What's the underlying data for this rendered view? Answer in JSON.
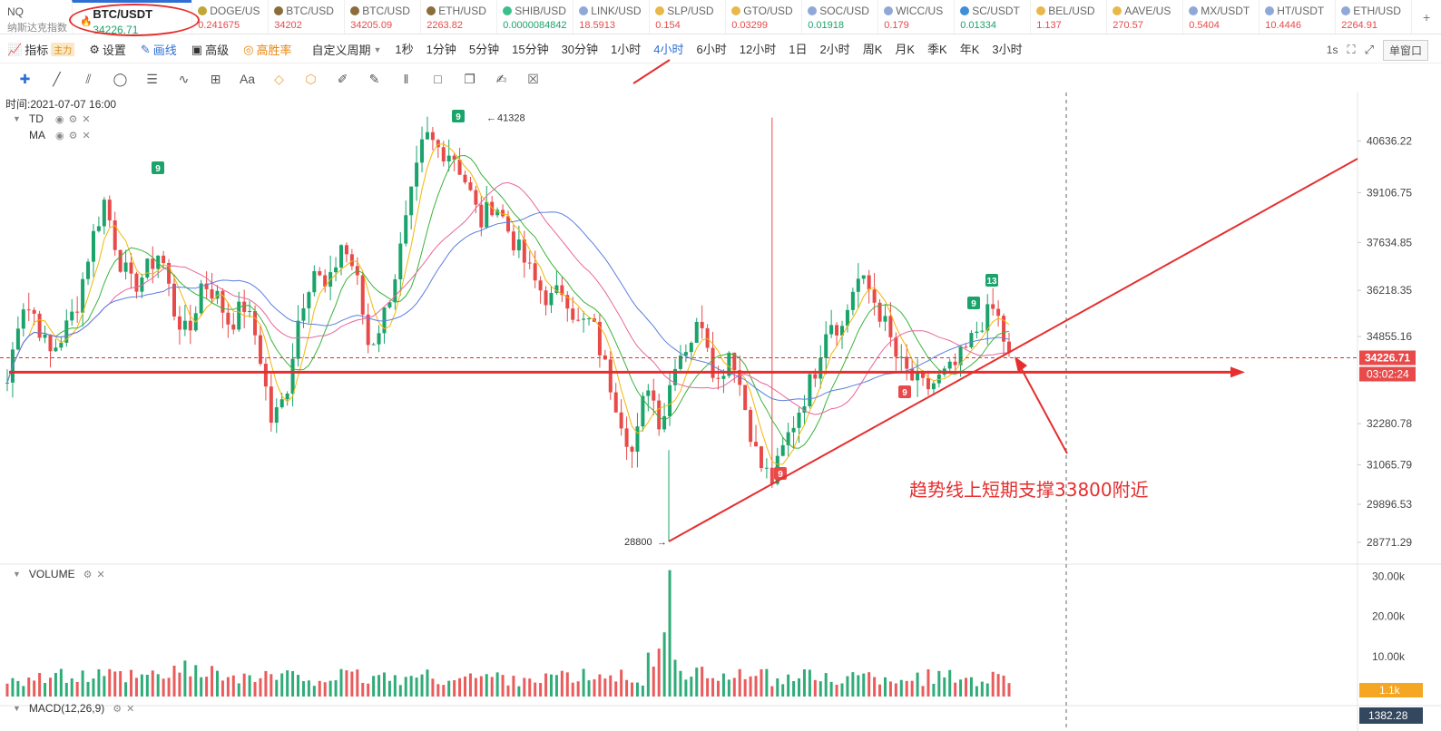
{
  "ticker": {
    "nq": {
      "symbol": "NQ",
      "subtitle": "纳斯达克指数"
    },
    "active": {
      "symbol": "BTC/USDT",
      "price": "34226.71"
    },
    "items": [
      {
        "symbol": "DOGE/US",
        "price": "0.241675",
        "coin_color": "#c2a633"
      },
      {
        "symbol": "BTC/USD",
        "price": "34202",
        "coin_color": "#8a6d3b"
      },
      {
        "symbol": "BTC/USD",
        "price": "34205.09",
        "coin_color": "#8a6d3b"
      },
      {
        "symbol": "ETH/USD",
        "price": "2263.82",
        "coin_color": "#8a6d3b"
      },
      {
        "symbol": "SHIB/USD",
        "price": "0.0000084842",
        "coin_color": "#3cbf8c"
      },
      {
        "symbol": "LINK/USD",
        "price": "18.5913",
        "coin_color": "#8fa8d8"
      },
      {
        "symbol": "SLP/USD",
        "price": "0.154",
        "coin_color": "#e8b84a"
      },
      {
        "symbol": "GTO/USD",
        "price": "0.03299",
        "coin_color": "#e8b84a"
      },
      {
        "symbol": "SOC/USD",
        "price": "0.01918",
        "coin_color": "#8fa8d8"
      },
      {
        "symbol": "WICC/US",
        "price": "0.179",
        "coin_color": "#8fa8d8"
      },
      {
        "symbol": "SC/USDT",
        "price": "0.01334",
        "coin_color": "#3c8fd8"
      },
      {
        "symbol": "BEL/USD",
        "price": "1.137",
        "coin_color": "#e8b84a"
      },
      {
        "symbol": "AAVE/US",
        "price": "270.57",
        "coin_color": "#e8b84a"
      },
      {
        "symbol": "MX/USDT",
        "price": "0.5404",
        "coin_color": "#8fa8d8"
      },
      {
        "symbol": "HT/USDT",
        "price": "10.4446",
        "coin_color": "#8fa8d8"
      },
      {
        "symbol": "ETH/USD",
        "price": "2264.91",
        "coin_color": "#8fa8d8"
      }
    ],
    "add_label": "+"
  },
  "toolbar": {
    "indicators_label": "指标",
    "indicators_tag": "主力",
    "settings_label": "设置",
    "draw_label": "画线",
    "advanced_label": "高级",
    "winrate_label": "高胜率",
    "custom_period_label": "自定义周期",
    "intervals": [
      "1秒",
      "1分钟",
      "5分钟",
      "15分钟",
      "30分钟",
      "1小时",
      "4小时",
      "6小时",
      "12小时",
      "1日",
      "2小时",
      "周K",
      "月K",
      "季K",
      "年K",
      "3小时"
    ],
    "active_interval": "4小时",
    "right_speed": "1s",
    "window_label": "单窗口"
  },
  "drawing_tools": [
    "crosshair-icon",
    "trendline-icon",
    "parallel-channel-icon",
    "ellipse-icon",
    "horizontal-lines-icon",
    "wave-icon",
    "measure-icon",
    "text-icon",
    "fib-icon",
    "pattern-icon",
    "ruler-icon",
    "brush-icon",
    "bars-icon",
    "lock-icon",
    "copy-icon",
    "edit-icon",
    "trash-icon"
  ],
  "chart": {
    "time_label": "时间:2021-07-07 16:00",
    "legends": [
      {
        "name": "TD"
      },
      {
        "name": "MA"
      }
    ],
    "volume_label": "VOLUME",
    "macd_label": "MACD(12,26,9)",
    "high_label": "41328",
    "low_label": "28800",
    "price_ticks": [
      "40636.22",
      "39106.75",
      "37634.85",
      "36218.35",
      "34855.16",
      "32280.78",
      "31065.79",
      "29896.53",
      "28771.29"
    ],
    "volume_ticks": [
      "30.00k",
      "20.00k",
      "10.00k"
    ],
    "current_price": "34226.71",
    "countdown": "03:02:24",
    "volume_current": "1.1k",
    "macd_value": "1382.28",
    "annotation": "趋势线上短期支撑33800附近",
    "td_markers": [
      "9",
      "9",
      "9",
      "13",
      "9",
      "9"
    ],
    "colors": {
      "up": "#1aa36a",
      "down": "#e84a4a",
      "annotation": "#e62e2e",
      "ma_yellow": "#f2b705",
      "ma_green": "#3cb33c",
      "ma_pink": "#e8669c",
      "ma_blue": "#5b7fe0"
    }
  },
  "chart_data": {
    "type": "candlestick",
    "y_ticks": [
      40636.22,
      39106.75,
      37634.85,
      36218.35,
      34855.16,
      32280.78,
      31065.79,
      29896.53,
      28771.29
    ],
    "y_range": [
      28450,
      41800
    ],
    "high": 41328,
    "low": 28800,
    "last": 34226.71,
    "support_level": 33800,
    "close_path": [
      33500,
      35900,
      35500,
      34300,
      34900,
      35800,
      37600,
      38900,
      37200,
      36300,
      36800,
      37400,
      35600,
      34800,
      36500,
      36100,
      35200,
      35800,
      34700,
      32300,
      33100,
      35600,
      36900,
      36100,
      37600,
      36800,
      34500,
      35400,
      36900,
      38900,
      40800,
      40400,
      40300,
      39400,
      38200,
      38900,
      38000,
      37200,
      36400,
      35900,
      36300,
      35200,
      35300,
      33900,
      32600,
      31300,
      33600,
      32200,
      34200,
      34700,
      35400,
      33400,
      34600,
      32800,
      31100,
      30600,
      31800,
      32800,
      33800,
      35400,
      35100,
      36600,
      36200,
      35300,
      34100,
      33600,
      33300,
      33600,
      33900,
      34500,
      35300,
      35700,
      34200
    ],
    "volume_ticks": [
      30000,
      20000,
      10000
    ]
  }
}
